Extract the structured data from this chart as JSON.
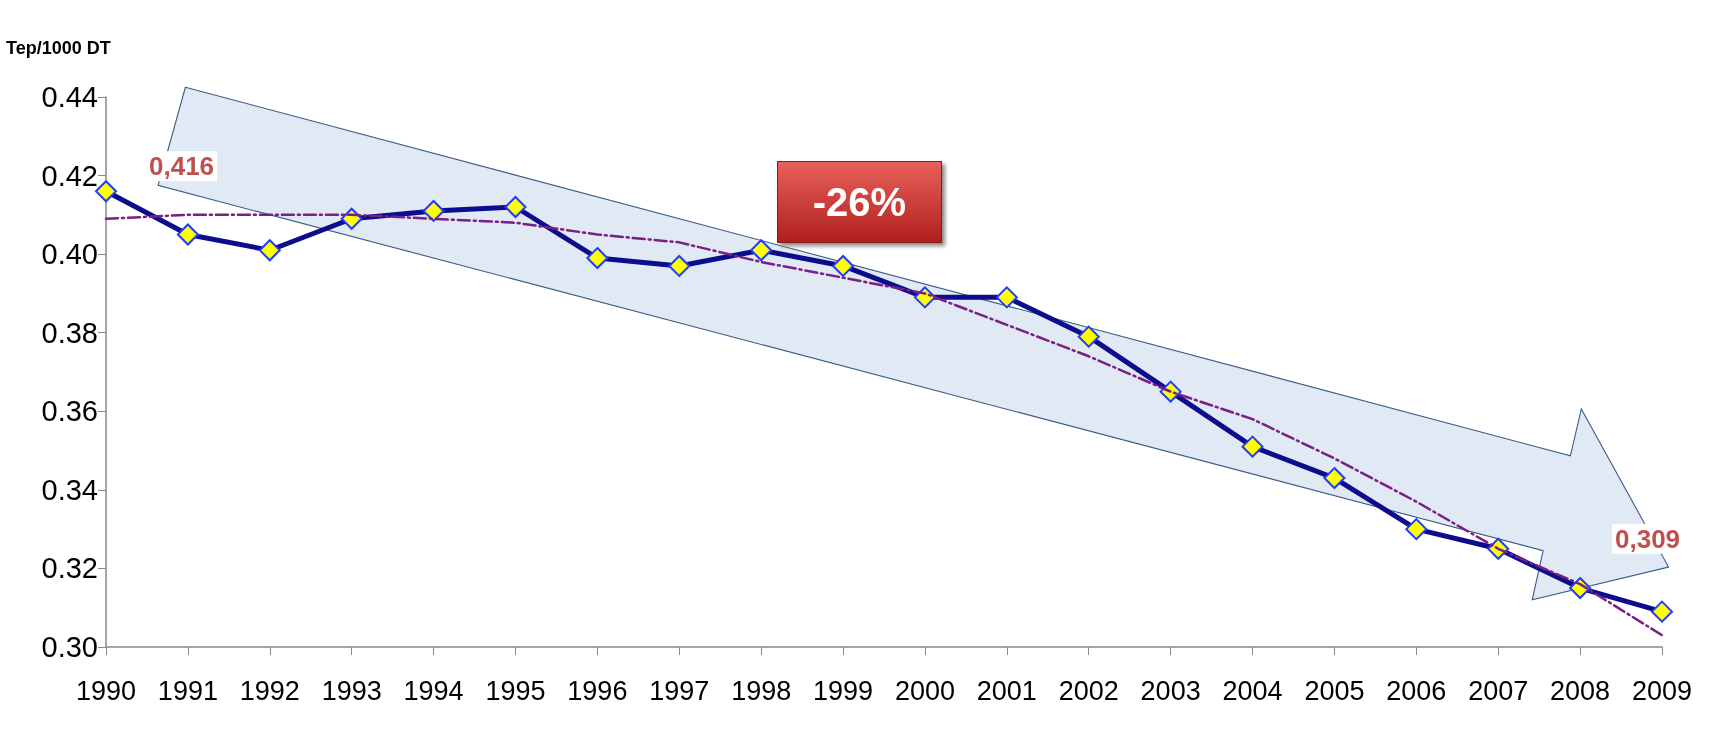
{
  "chart_data": {
    "type": "line",
    "ylabel": "Tep/1000 DT",
    "categories": [
      "1990",
      "1991",
      "1992",
      "1993",
      "1994",
      "1995",
      "1996",
      "1997",
      "1998",
      "1999",
      "2000",
      "2001",
      "2002",
      "2003",
      "2004",
      "2005",
      "2006",
      "2007",
      "2008",
      "2009"
    ],
    "series": [
      {
        "color": "#0c0c8c",
        "marker": "diamond",
        "line_style": "solid",
        "values": [
          0.416,
          0.405,
          0.401,
          0.409,
          0.411,
          0.412,
          0.399,
          0.397,
          0.401,
          0.397,
          0.389,
          0.389,
          0.379,
          0.365,
          0.351,
          0.343,
          0.33,
          0.325,
          0.315,
          0.309
        ]
      },
      {
        "color": "#7a1f86",
        "marker": "none",
        "line_style": "dashed",
        "values": [
          0.409,
          0.41,
          0.41,
          0.41,
          0.409,
          0.408,
          0.405,
          0.403,
          0.398,
          0.394,
          0.39,
          0.382,
          0.374,
          0.365,
          0.358,
          0.348,
          0.337,
          0.325,
          0.316,
          0.303
        ]
      }
    ],
    "ylim": [
      0.3,
      0.44
    ],
    "yticks": [
      {
        "value": 0.3,
        "label": "0.30"
      },
      {
        "value": 0.32,
        "label": "0.32"
      },
      {
        "value": 0.34,
        "label": "0.34"
      },
      {
        "value": 0.36,
        "label": "0.36"
      },
      {
        "value": 0.38,
        "label": "0.38"
      },
      {
        "value": 0.4,
        "label": "0.40"
      },
      {
        "value": 0.42,
        "label": "0.42"
      },
      {
        "value": 0.44,
        "label": "0.44"
      }
    ],
    "grid": false,
    "annotations": [
      "-26%",
      {
        "text": "0,416",
        "x": "1990",
        "y": 0.416
      },
      {
        "text": "0,309",
        "x": "2009",
        "y": 0.309
      }
    ]
  }
}
